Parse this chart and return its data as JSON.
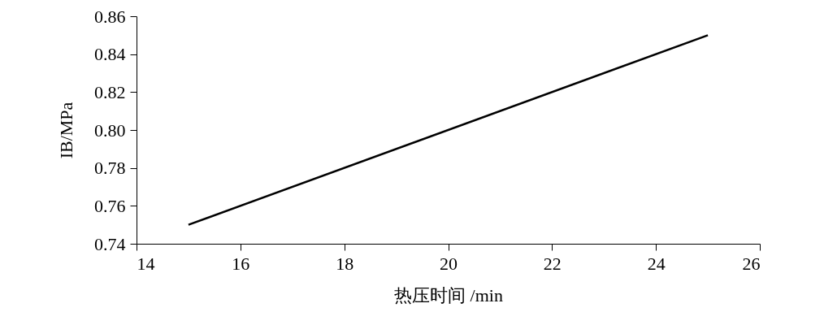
{
  "chart_data": {
    "type": "line",
    "xlabel": "热压时间 /min",
    "ylabel": "IB/MPa",
    "series": [
      {
        "color": "#000000",
        "x": [
          15,
          25
        ],
        "values": [
          0.75,
          0.85
        ]
      }
    ],
    "xlim": [
      14,
      26
    ],
    "xticks": [
      14,
      16,
      18,
      20,
      22,
      24,
      26
    ],
    "ylim": [
      0.74,
      0.86
    ],
    "yticks": [
      0.74,
      0.76,
      0.78,
      {
        "value": 0.8,
        "label": "0.80"
      },
      0.82,
      0.84,
      0.86
    ]
  }
}
